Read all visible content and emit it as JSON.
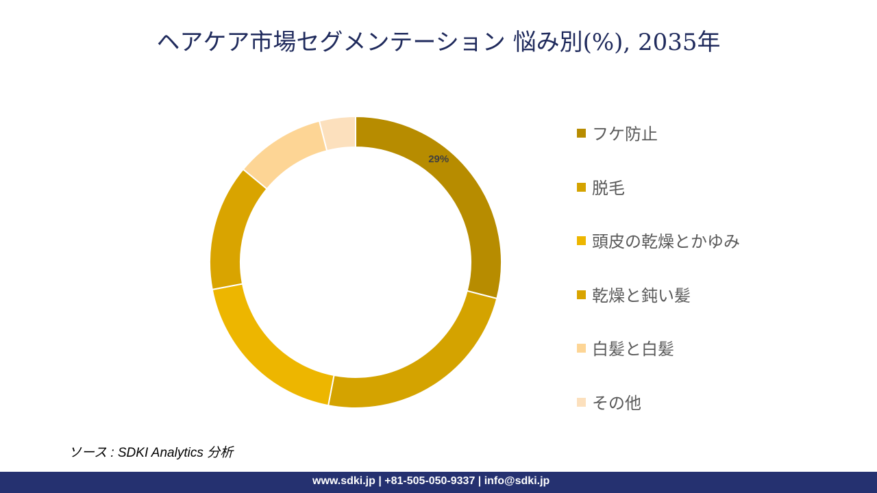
{
  "chart_data": {
    "type": "pie",
    "variant": "donut",
    "title": "ヘアケア市場セグメンテーション  悩み別(%), 2035年",
    "categories": [
      "フケ防止",
      "脱毛",
      "頭皮の乾燥とかゆみ",
      "乾燥と鈍い髪",
      "白髪と白髪",
      "その他"
    ],
    "values": [
      29,
      24,
      19,
      14,
      10,
      4
    ],
    "data_labels": [
      "29%",
      "",
      "",
      "",
      "",
      ""
    ],
    "colors": [
      "#B78C00",
      "#D4A300",
      "#EDB600",
      "#D9A400",
      "#FDD595",
      "#FCE0BD"
    ],
    "legend_position": "right"
  },
  "source": "ソース : SDKI Analytics 分析",
  "footer": "www.sdki.jp | +81-505-050-9337 | info@sdki.jp"
}
